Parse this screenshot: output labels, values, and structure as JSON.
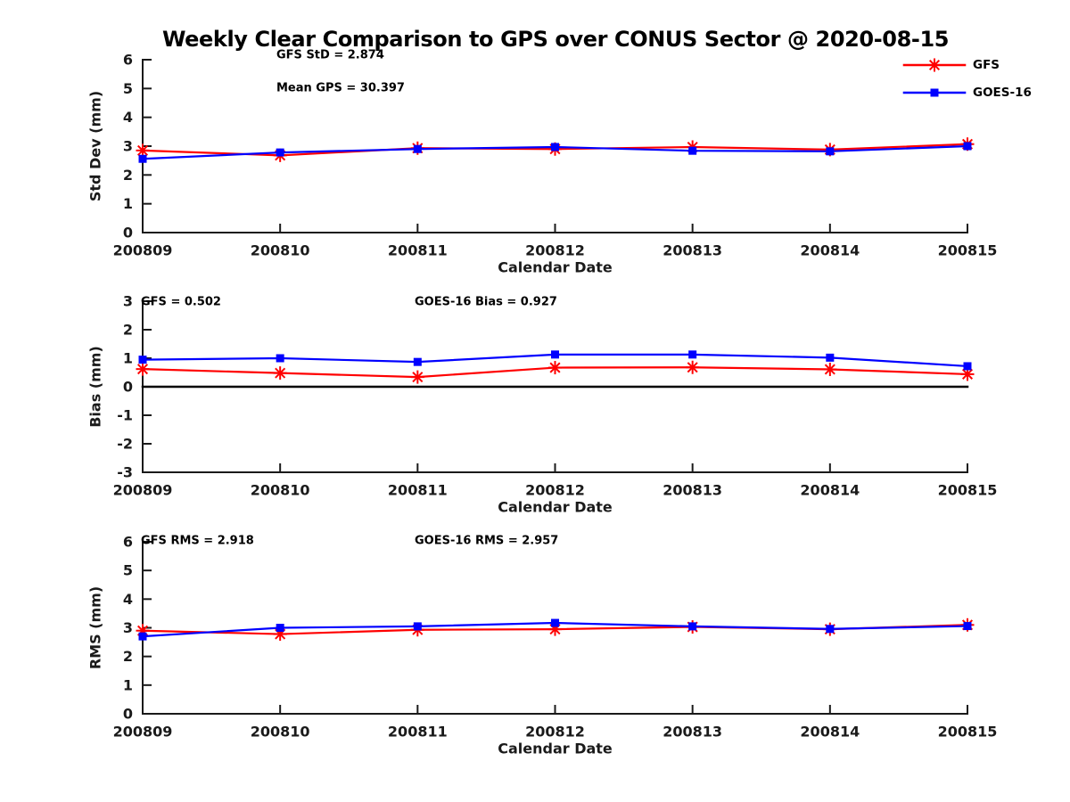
{
  "title": "Weekly Clear Comparison to GPS over CONUS Sector @ 2020-08-15",
  "legend": {
    "position": "top-right",
    "items": [
      {
        "label": "GFS",
        "color": "#ff0000",
        "marker": "asterisk"
      },
      {
        "label": "GOES-16",
        "color": "#0000ff",
        "marker": "square"
      }
    ]
  },
  "colors": {
    "background": "#ffffff",
    "axis": "#1a1a1a",
    "text": "#000000",
    "gfs": "#ff0000",
    "goes16": "#0000ff",
    "zero_line": "#000000"
  },
  "chart_data": [
    {
      "type": "line",
      "name": "std-dev",
      "categories": [
        "200809",
        "200810",
        "200811",
        "200812",
        "200813",
        "200814",
        "200815"
      ],
      "xlabel": "Calendar Date",
      "ylabel": "Std Dev (mm)",
      "ylim": [
        0,
        6
      ],
      "yticks": [
        0,
        1,
        2,
        3,
        4,
        5,
        6
      ],
      "grid": false,
      "zero_line": false,
      "series": [
        {
          "name": "GFS",
          "color": "#ff0000",
          "marker": "asterisk",
          "values": [
            2.85,
            2.68,
            2.93,
            2.9,
            2.97,
            2.88,
            3.07
          ]
        },
        {
          "name": "GOES-16",
          "color": "#0000ff",
          "marker": "square",
          "values": [
            2.56,
            2.78,
            2.9,
            2.97,
            2.84,
            2.82,
            3.0
          ]
        }
      ],
      "annotations": [
        {
          "text": "GFS StD = 2.874",
          "x": 310,
          "y": 62
        },
        {
          "text": "Mean GPS = 30.397",
          "x": 310,
          "y": 99
        }
      ]
    },
    {
      "type": "line",
      "name": "bias",
      "categories": [
        "200809",
        "200810",
        "200811",
        "200812",
        "200813",
        "200814",
        "200815"
      ],
      "xlabel": "Calendar Date",
      "ylabel": "Bias (mm)",
      "ylim": [
        -3,
        3
      ],
      "yticks": [
        -3,
        -2,
        -1,
        0,
        1,
        2,
        3
      ],
      "grid": false,
      "zero_line": true,
      "series": [
        {
          "name": "GFS",
          "color": "#ff0000",
          "marker": "asterisk",
          "values": [
            0.62,
            0.48,
            0.34,
            0.67,
            0.68,
            0.61,
            0.44
          ]
        },
        {
          "name": "GOES-16",
          "color": "#0000ff",
          "marker": "square",
          "values": [
            0.95,
            1.0,
            0.87,
            1.13,
            1.13,
            1.02,
            0.72
          ]
        }
      ],
      "annotations": [
        {
          "text": "GFS = 0.502",
          "x": 158,
          "y": 339
        },
        {
          "text": "GOES-16 Bias  = 0.927",
          "x": 465,
          "y": 339
        }
      ]
    },
    {
      "type": "line",
      "name": "rms",
      "categories": [
        "200809",
        "200810",
        "200811",
        "200812",
        "200813",
        "200814",
        "200815"
      ],
      "xlabel": "Calendar Date",
      "ylabel": "RMS (mm)",
      "ylim": [
        0,
        6
      ],
      "yticks": [
        0,
        1,
        2,
        3,
        4,
        5,
        6
      ],
      "grid": false,
      "zero_line": false,
      "series": [
        {
          "name": "GFS",
          "color": "#ff0000",
          "marker": "asterisk",
          "values": [
            2.9,
            2.78,
            2.93,
            2.95,
            3.03,
            2.95,
            3.1
          ]
        },
        {
          "name": "GOES-16",
          "color": "#0000ff",
          "marker": "square",
          "values": [
            2.7,
            3.0,
            3.05,
            3.17,
            3.05,
            2.96,
            3.06
          ]
        }
      ],
      "annotations": [
        {
          "text": "GFS RMS = 2.918",
          "x": 158,
          "y": 607
        },
        {
          "text": "GOES-16 RMS = 2.957",
          "x": 465,
          "y": 607
        }
      ]
    }
  ]
}
